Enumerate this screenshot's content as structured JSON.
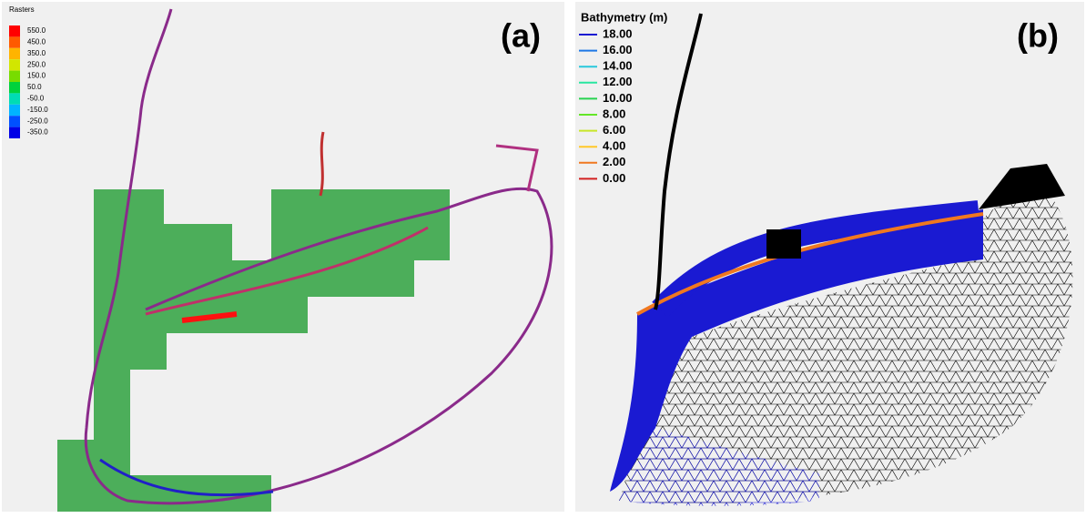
{
  "panels": [
    {
      "label": "(a)",
      "legend": {
        "title": "Rasters",
        "entries": [
          {
            "label": "550.0",
            "color": "#ff0000"
          },
          {
            "label": "450.0",
            "color": "#ff5a00"
          },
          {
            "label": "350.0",
            "color": "#ffb400"
          },
          {
            "label": "250.0",
            "color": "#d2e600"
          },
          {
            "label": "150.0",
            "color": "#78dc00"
          },
          {
            "label": "50.0",
            "color": "#00d23c"
          },
          {
            "label": "-50.0",
            "color": "#00dcb4"
          },
          {
            "label": "-150.0",
            "color": "#00b4ff"
          },
          {
            "label": "-250.0",
            "color": "#0050ff"
          },
          {
            "label": "-350.0",
            "color": "#0000e6"
          }
        ]
      }
    },
    {
      "label": "(b)",
      "legend": {
        "title": "Bathymetry (m)",
        "entries": [
          {
            "label": "18.00",
            "color": "#1a1ad2"
          },
          {
            "label": "16.00",
            "color": "#1e78e6"
          },
          {
            "label": "14.00",
            "color": "#28c8dc"
          },
          {
            "label": "12.00",
            "color": "#28e6a0"
          },
          {
            "label": "10.00",
            "color": "#28d250"
          },
          {
            "label": "8.00",
            "color": "#64e628"
          },
          {
            "label": "6.00",
            "color": "#c8e628"
          },
          {
            "label": "4.00",
            "color": "#ffc828"
          },
          {
            "label": "2.00",
            "color": "#f07820"
          },
          {
            "label": "0.00",
            "color": "#d22020"
          }
        ]
      }
    }
  ]
}
